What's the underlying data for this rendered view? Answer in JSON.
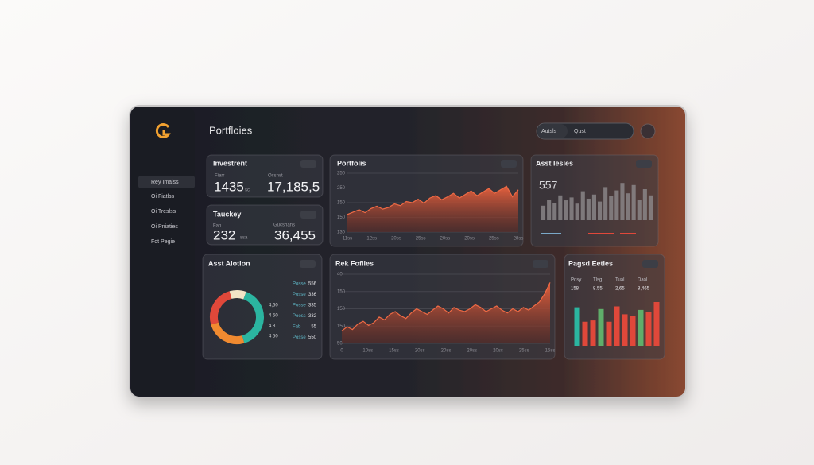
{
  "header": {
    "title": "Portfloies",
    "button": "Autsls",
    "search": "Qust"
  },
  "sidebar": [
    "Rey Imalss",
    "Oi Fiatlss",
    "Oi Treslss",
    "Oi Pniaties",
    "Fot Pegie"
  ],
  "investment": {
    "title": "Investrent",
    "label_a": "Fiarr",
    "value_a": "1435",
    "unit_a": "sc",
    "label_b": "Ocsnst",
    "value_b": "17,185,5"
  },
  "tracker": {
    "title": "Tauckey",
    "label_a": "Fan",
    "value_a": "232",
    "unit_a": "ssa",
    "label_b": "Gucshans",
    "value_b": "36,455"
  },
  "portfolio": {
    "title": "Portfolis",
    "ylim": [
      0,
      100
    ],
    "y_labels": [
      "250",
      "250",
      "150",
      "150",
      "130"
    ],
    "x_labels": [
      "11ss",
      "12ss",
      "20ss",
      "25ss",
      "20ss",
      "20ss",
      "25ss",
      "28ss"
    ],
    "values": [
      30,
      34,
      38,
      33,
      40,
      44,
      39,
      42,
      48,
      45,
      52,
      50,
      56,
      49,
      58,
      62,
      55,
      60,
      66,
      58,
      64,
      70,
      62,
      68,
      74,
      66,
      72,
      78,
      60,
      72
    ]
  },
  "asset_series": {
    "title": "Asst Iesles",
    "value": "557",
    "ylim": [
      0,
      100
    ],
    "values": [
      35,
      50,
      42,
      60,
      48,
      55,
      40,
      70,
      52,
      62,
      45,
      80,
      58,
      72,
      90,
      65,
      85,
      50,
      75,
      60
    ],
    "color": "#8d8a8c"
  },
  "allocation": {
    "title": "Asst Alotion",
    "donut": {
      "values": [
        40,
        25,
        25,
        10
      ],
      "colors": [
        "#2bb5a0",
        "#f08a30",
        "#e0483a",
        "#f2e4c6"
      ]
    },
    "legend": [
      {
        "name": "Posse",
        "value": "556"
      },
      {
        "name": "Posse",
        "value": "336"
      },
      {
        "name": "Posse",
        "value": "335"
      },
      {
        "name": "Pooss",
        "value": "332"
      },
      {
        "name": "Fab",
        "value": "55"
      },
      {
        "name": "Posse",
        "value": "550"
      }
    ],
    "side_labels": [
      "4,60",
      "4 50",
      "4 8",
      "4 50"
    ]
  },
  "risk": {
    "title": "Rek Foflies",
    "ylim": [
      0,
      100
    ],
    "y_labels": [
      "40",
      "150",
      "150",
      "150",
      "50"
    ],
    "x_labels": [
      "0",
      "10ss",
      "15ss",
      "20ss",
      "20ss",
      "20ss",
      "20ss",
      "25ss",
      "15ss"
    ],
    "values": [
      18,
      24,
      20,
      28,
      32,
      26,
      30,
      38,
      34,
      42,
      46,
      40,
      36,
      44,
      50,
      46,
      42,
      48,
      54,
      50,
      44,
      52,
      48,
      46,
      50,
      56,
      52,
      46,
      50,
      54,
      48,
      44,
      50,
      46,
      52,
      48,
      54,
      60,
      72,
      88
    ]
  },
  "rapid": {
    "title": "Pagsd Eetles",
    "stats": [
      {
        "label": "Pqsy",
        "value": "158"
      },
      {
        "label": "Tlsg",
        "value": "8.55"
      },
      {
        "label": "Tual",
        "value": "2,65"
      },
      {
        "label": "Daal",
        "value": "8,465"
      }
    ],
    "ylim": [
      0,
      100
    ],
    "values": [
      88,
      55,
      58,
      84,
      55,
      90,
      72,
      68,
      82,
      78,
      100
    ],
    "colors": [
      "#2bb5a0",
      "#e0483a",
      "#e0483a",
      "#5fae6a",
      "#e0483a",
      "#e0483a",
      "#e0483a",
      "#e0483a",
      "#5fae6a",
      "#e0483a",
      "#e0483a"
    ]
  }
}
